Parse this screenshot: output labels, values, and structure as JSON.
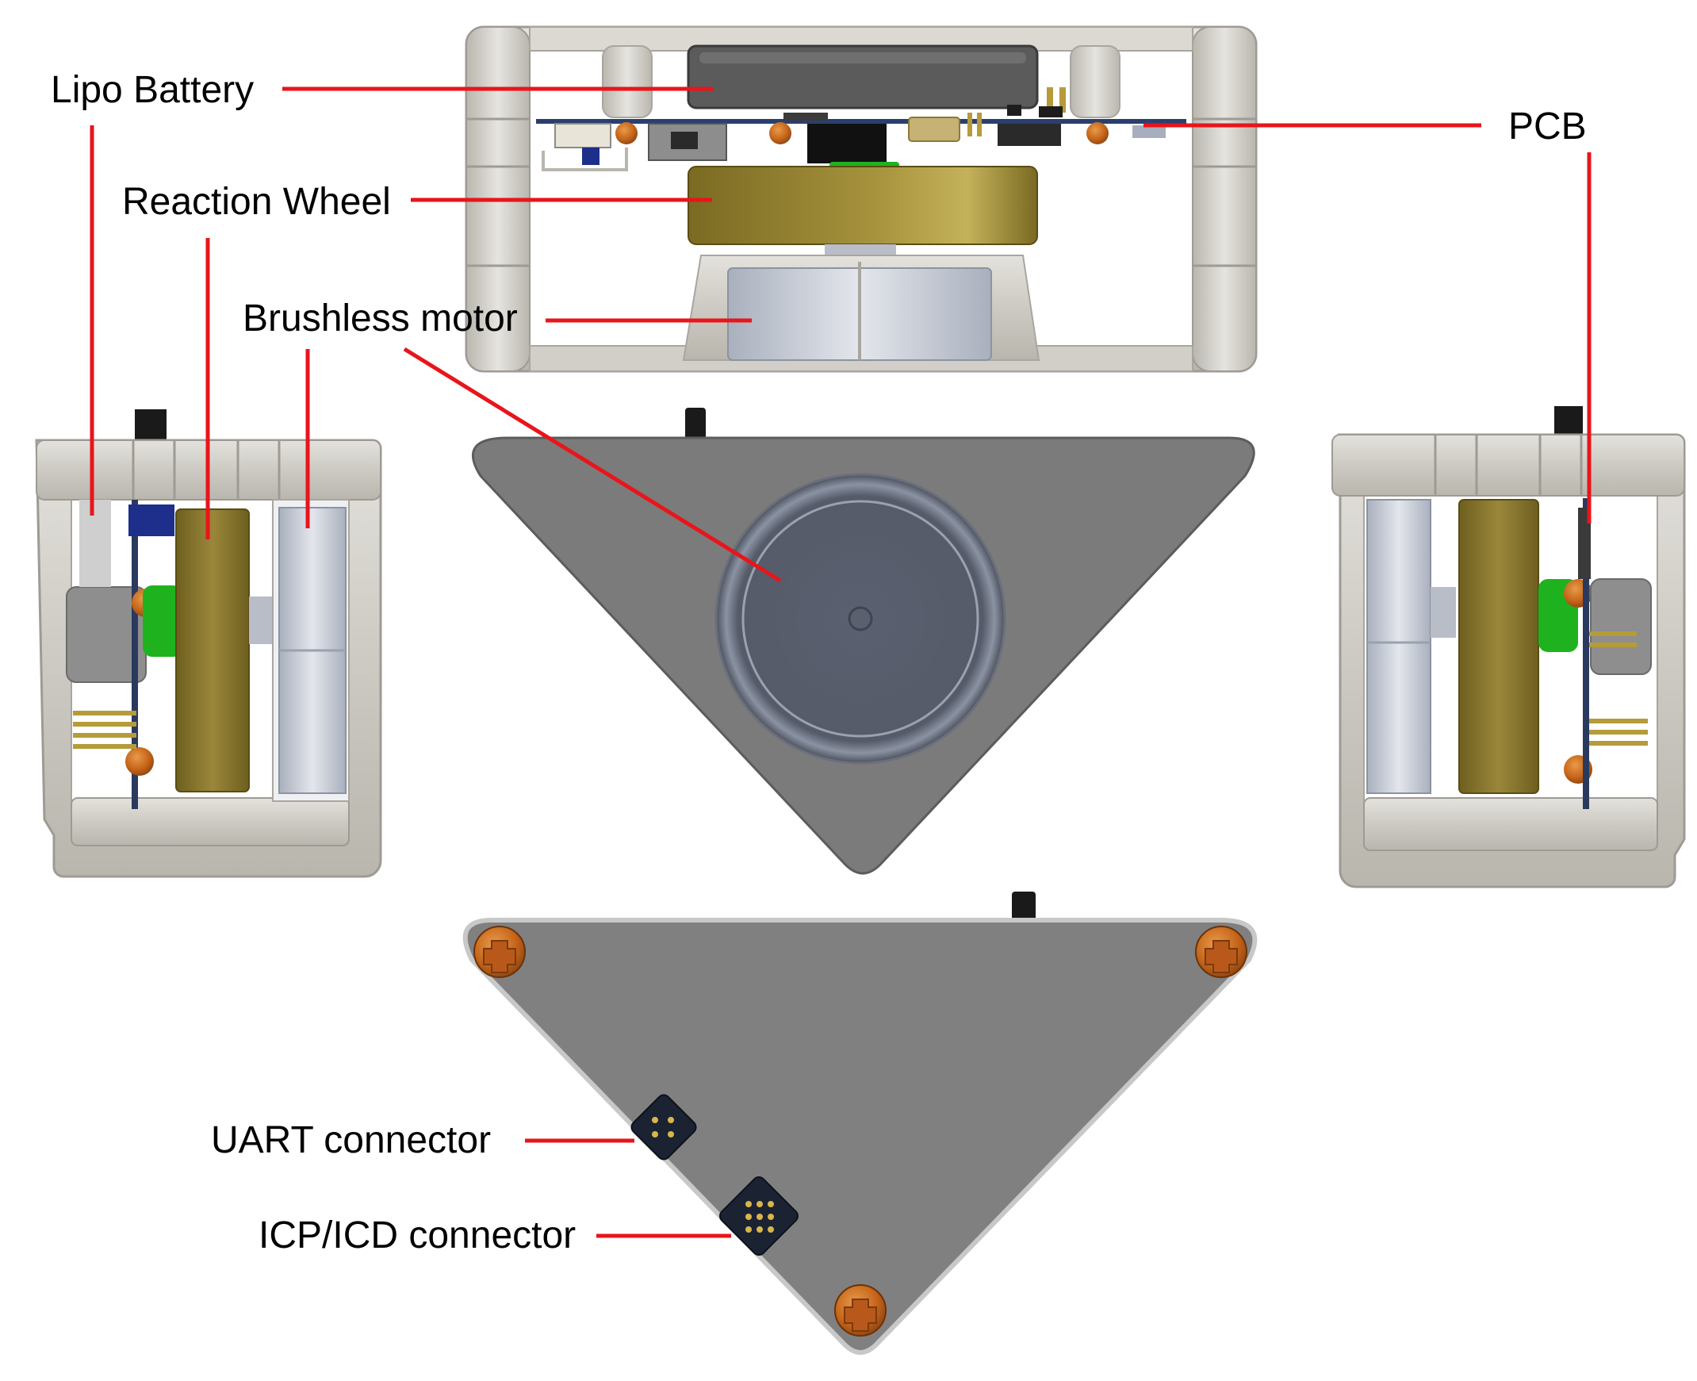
{
  "diagram": {
    "labels": {
      "lipo_battery": "Lipo Battery",
      "reaction_wheel": "Reaction Wheel",
      "brushless_motor": "Brushless motor",
      "pcb": "PCB",
      "uart_connector": "UART connector",
      "icp_icd_connector": "ICP/ICD connector"
    },
    "colors": {
      "leader_line": "#e8151b",
      "frame_light": "#d9d6d0",
      "frame_mid": "#c6c3bc",
      "body_gray": "#7d7d7d",
      "body_dark": "#6e6e6e",
      "reaction_wheel": "#8c7a2a",
      "motor_green": "#1fb21f",
      "battery": "#5a5a5a",
      "screw": "#c96a1a",
      "connector": "#1b2333"
    }
  }
}
